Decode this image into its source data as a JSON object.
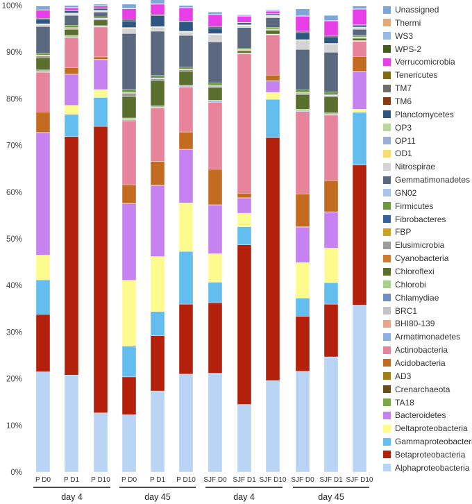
{
  "chart_data": {
    "type": "bar",
    "stacked": true,
    "ylim": [
      0,
      100
    ],
    "yticks": [
      "0%",
      "10%",
      "20%",
      "30%",
      "40%",
      "50%",
      "60%",
      "70%",
      "80%",
      "90%",
      "100%"
    ],
    "grid": false,
    "legend_position": "right",
    "categories": [
      "P D0",
      "P D1",
      "P D10",
      "P D0",
      "P D1",
      "P D10",
      "SJF D0",
      "SJF D1",
      "SJF D10",
      "SJF D0",
      "SJF D1",
      "SJF D10"
    ],
    "groups": [
      {
        "label": "day 4",
        "start": 0,
        "end": 2
      },
      {
        "label": "day 45",
        "start": 3,
        "end": 5
      },
      {
        "label": "day 4",
        "start": 6,
        "end": 8
      },
      {
        "label": "day 45",
        "start": 9,
        "end": 11
      }
    ],
    "series": [
      {
        "name": "Alphaproteobacteria",
        "color": "#b9d4f4",
        "values": [
          21.5,
          20.8,
          12.7,
          12.3,
          17.4,
          21.0,
          21.2,
          14.5,
          19.6,
          21.6,
          24.7,
          35.8
        ]
      },
      {
        "name": "Betaproteobacteria",
        "color": "#b3200b",
        "values": [
          12.3,
          51.1,
          61.4,
          8.1,
          11.8,
          15.0,
          15.1,
          34.2,
          52.1,
          11.8,
          11.3,
          30.0
        ]
      },
      {
        "name": "Gammaproteobacteria",
        "color": "#63bdee",
        "values": [
          7.4,
          4.8,
          6.2,
          6.6,
          5.2,
          11.3,
          4.4,
          3.9,
          8.2,
          3.9,
          4.6,
          11.3
        ]
      },
      {
        "name": "Deltaproteobacteria",
        "color": "#fdfb8e",
        "values": [
          5.3,
          1.9,
          1.7,
          14.1,
          11.8,
          10.4,
          6.1,
          2.9,
          1.5,
          7.6,
          7.4,
          0.7
        ]
      },
      {
        "name": "Bacteroidetes",
        "color": "#c582f0",
        "values": [
          26.2,
          6.6,
          6.4,
          16.4,
          15.2,
          11.4,
          10.4,
          3.2,
          2.4,
          7.6,
          7.7,
          8.0
        ]
      },
      {
        "name": "TA18",
        "color": "#7ba74b",
        "values": [
          0,
          0,
          0,
          0,
          0,
          0,
          0,
          0,
          0,
          0,
          0,
          0
        ]
      },
      {
        "name": "Crenarchaeota",
        "color": "#6b4c18",
        "values": [
          0.1,
          0.1,
          0.1,
          0.1,
          0.1,
          0.1,
          0.1,
          0.1,
          0.1,
          0.1,
          0.1,
          0.1
        ]
      },
      {
        "name": "AD3",
        "color": "#a07f1a",
        "values": [
          0,
          0,
          0,
          0,
          0,
          0,
          0,
          0,
          0,
          0,
          0,
          0
        ]
      },
      {
        "name": "Acidobacteria",
        "color": "#c46b22",
        "values": [
          4.4,
          1.4,
          0.5,
          4.0,
          5.1,
          3.7,
          7.6,
          1.0,
          1.2,
          7.0,
          6.7,
          3.2
        ]
      },
      {
        "name": "Actinobacteria",
        "color": "#e8839c",
        "values": [
          8.5,
          6.4,
          6.4,
          13.7,
          11.4,
          9.6,
          14.4,
          29.8,
          8.6,
          17.7,
          14.0,
          3.2
        ]
      },
      {
        "name": "Armatimonadetes",
        "color": "#8eb0df",
        "values": [
          0.2,
          0.2,
          0.1,
          0.2,
          0.2,
          0.2,
          0.2,
          0.1,
          0.1,
          0.2,
          0.2,
          0.1
        ]
      },
      {
        "name": "BHI80-139",
        "color": "#e9a58a",
        "values": [
          0,
          0,
          0,
          0,
          0,
          0,
          0,
          0,
          0,
          0,
          0,
          0
        ]
      },
      {
        "name": "BRC1",
        "color": "#c3c3c3",
        "values": [
          0,
          0,
          0,
          0,
          0,
          0,
          0,
          0,
          0,
          0,
          0,
          0
        ]
      },
      {
        "name": "Chlamydiae",
        "color": "#6f8fc2",
        "values": [
          0,
          0,
          0,
          0,
          0,
          0,
          0,
          0,
          0,
          0,
          0,
          0
        ]
      },
      {
        "name": "Chlorobi",
        "color": "#a8cf8c",
        "values": [
          0.3,
          0.3,
          0.2,
          0.4,
          0.3,
          0.2,
          0.2,
          0.1,
          0.1,
          0.3,
          0.3,
          0.1
        ]
      },
      {
        "name": "Chloroflexi",
        "color": "#5a6e2e",
        "values": [
          2.6,
          1.3,
          1.2,
          4.6,
          5.4,
          3.0,
          2.7,
          0.5,
          0.8,
          3.1,
          3.4,
          0.5
        ]
      },
      {
        "name": "Cyanobacteria",
        "color": "#d17a30",
        "values": [
          0,
          0,
          0,
          0,
          0,
          0,
          0,
          0,
          0,
          0,
          0,
          0
        ]
      },
      {
        "name": "Elusimicrobia",
        "color": "#9c9c9c",
        "values": [
          0.4,
          0.2,
          0.2,
          0.7,
          0.4,
          0.3,
          0.3,
          0.1,
          0.1,
          0.3,
          0.3,
          0.1
        ]
      },
      {
        "name": "FBP",
        "color": "#c9a227",
        "values": [
          0.1,
          0.1,
          0.1,
          0.1,
          0.1,
          0.1,
          0.1,
          0.1,
          0.1,
          0.1,
          0.1,
          0.1
        ]
      },
      {
        "name": "Fibrobacteres",
        "color": "#3a5f9e",
        "values": [
          0.1,
          0.1,
          0.1,
          0.1,
          0.1,
          0.1,
          0.1,
          0.1,
          0.1,
          0.1,
          0.1,
          0.1
        ]
      },
      {
        "name": "Firmicutes",
        "color": "#6b9a3f",
        "values": [
          0.4,
          0.5,
          0.3,
          0.6,
          0.5,
          0.4,
          0.5,
          0.2,
          0.3,
          0.5,
          0.6,
          0.3
        ]
      },
      {
        "name": "GN02",
        "color": "#a9c4e6",
        "values": [
          0,
          0,
          0,
          0,
          0,
          0,
          0,
          0,
          0,
          0,
          0,
          0
        ]
      },
      {
        "name": "Gemmatimonadetes",
        "color": "#5b6980",
        "values": [
          5.7,
          2.1,
          1.0,
          12.0,
          9.5,
          6.8,
          8.8,
          4.5,
          2.1,
          8.7,
          8.5,
          1.3
        ]
      },
      {
        "name": "Nitrospirae",
        "color": "#d4d4d4",
        "values": [
          0.4,
          0.3,
          0.2,
          1.1,
          0.8,
          0.7,
          1.6,
          0.4,
          0.3,
          1.9,
          1.7,
          0.3
        ]
      },
      {
        "name": "OD1",
        "color": "#f6dc72",
        "values": [
          0.1,
          0.1,
          0.1,
          0.1,
          0.1,
          0.1,
          0.1,
          0.1,
          0.1,
          0.1,
          0.1,
          0.1
        ]
      },
      {
        "name": "OP11",
        "color": "#9aaed6",
        "values": [
          0.1,
          0.1,
          0.1,
          0.1,
          0.1,
          0.1,
          0.1,
          0.1,
          0.1,
          0.1,
          0.1,
          0.1
        ]
      },
      {
        "name": "OP3",
        "color": "#b8d89f",
        "values": [
          0,
          0,
          0,
          0,
          0,
          0,
          0,
          0,
          0,
          0,
          0,
          0
        ]
      },
      {
        "name": "Planctomycetes",
        "color": "#2d5680",
        "values": [
          1.0,
          0.5,
          0.4,
          1.4,
          2.3,
          2.0,
          1.2,
          0.4,
          0.3,
          1.5,
          1.4,
          0.4
        ]
      },
      {
        "name": "TM6",
        "color": "#8a3a12",
        "values": [
          0,
          0,
          0,
          0,
          0,
          0,
          0,
          0,
          0,
          0,
          0,
          0
        ]
      },
      {
        "name": "TM7",
        "color": "#6e6e6e",
        "values": [
          0.2,
          0.1,
          0.1,
          0.4,
          0.3,
          0.2,
          0.3,
          0.1,
          0.1,
          0.3,
          0.3,
          0.1
        ]
      },
      {
        "name": "Tenericutes",
        "color": "#7f6a12",
        "values": [
          0,
          0,
          0,
          0,
          0,
          0,
          0,
          0,
          0,
          0,
          0,
          0
        ]
      },
      {
        "name": "Verrucomicrobia",
        "color": "#e83ee8",
        "values": [
          1.7,
          0.5,
          0.4,
          2.2,
          2.2,
          2.8,
          2.5,
          1.3,
          0.5,
          3.2,
          3.1,
          3.3
        ]
      },
      {
        "name": "WPS-2",
        "color": "#3f5e1e",
        "values": [
          0,
          0,
          0,
          0,
          0,
          0,
          0,
          0,
          0,
          0,
          0,
          0
        ]
      },
      {
        "name": "WS3",
        "color": "#98b8e6",
        "values": [
          0.1,
          0.1,
          0.1,
          0.1,
          0.1,
          0.1,
          0.1,
          0.1,
          0.1,
          0.1,
          0.1,
          0.1
        ]
      },
      {
        "name": "Thermi",
        "color": "#e7a877",
        "values": [
          0,
          0,
          0,
          0,
          0,
          0,
          0,
          0,
          0,
          0,
          0,
          0
        ]
      },
      {
        "name": "Unassigned",
        "color": "#7ea7d8",
        "values": [
          0.8,
          0.4,
          0.3,
          0.9,
          1.2,
          0.4,
          0.5,
          0.2,
          0.2,
          1.5,
          1.1,
          0.6
        ]
      }
    ]
  }
}
